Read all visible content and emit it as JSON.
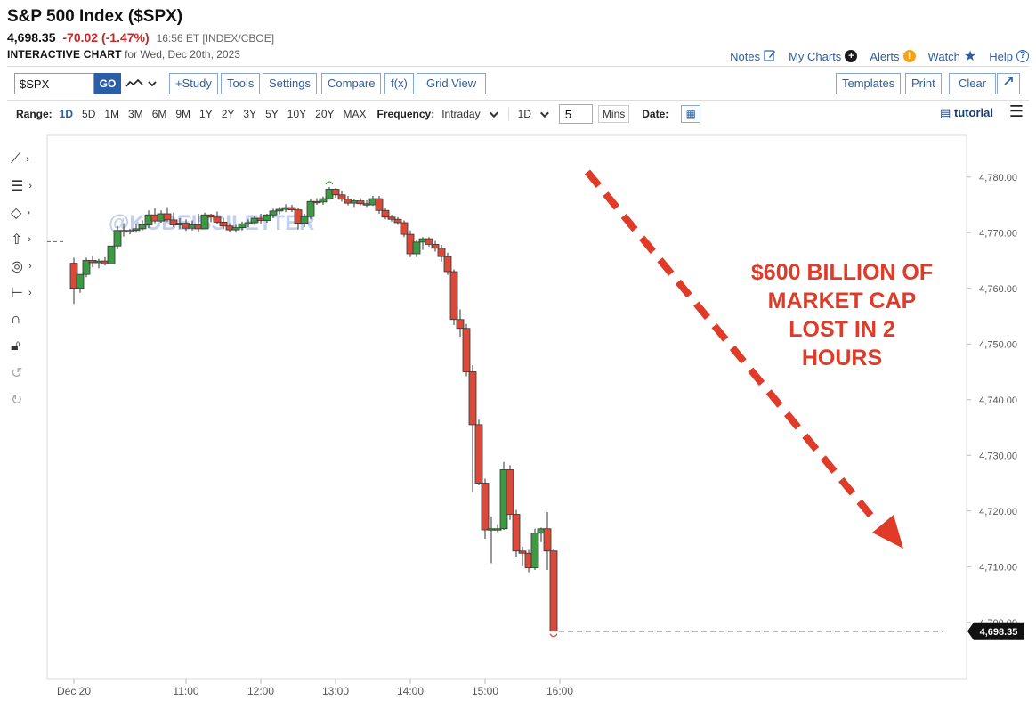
{
  "header": {
    "title": "S&P 500 Index ($SPX)",
    "last": "4,698.35",
    "change": "-70.02 (-1.47%)",
    "time": "16:56 ET [INDEX/CBOE]",
    "interactive_label": "INTERACTIVE CHART",
    "interactive_for": "for Wed, Dec 20th, 2023"
  },
  "toplinks": [
    {
      "label": "Notes",
      "icon": "pencil-icon"
    },
    {
      "label": "My Charts",
      "icon": "plus-circle-icon"
    },
    {
      "label": "Alerts",
      "icon": "alert-icon"
    },
    {
      "label": "Watch",
      "icon": "star-icon"
    },
    {
      "label": "Help",
      "icon": "help-icon"
    }
  ],
  "toolbar": {
    "symbol": "$SPX",
    "go": "GO",
    "chart_type_icon": "line-chart-icon",
    "buttons_left": [
      "+Study",
      "Tools",
      "Settings",
      "Compare",
      "f(x)",
      "Grid View"
    ],
    "buttons_right": [
      "Templates",
      "Print",
      "Clear"
    ],
    "expand_icon": "expand-icon"
  },
  "rangebar": {
    "range_label": "Range:",
    "ranges": [
      "1D",
      "5D",
      "1M",
      "3M",
      "6M",
      "9M",
      "1Y",
      "2Y",
      "3Y",
      "5Y",
      "10Y",
      "20Y",
      "MAX"
    ],
    "active_range": "1D",
    "frequency_label": "Frequency:",
    "frequency": "Intraday",
    "period": "1D",
    "interval": "5",
    "interval_unit": "Mins",
    "date_label": "Date:",
    "tutorial": "tutorial"
  },
  "drawing_tools": [
    "trendline-icon",
    "fibonacci-icon",
    "shapes-icon",
    "arrow-up-icon",
    "circle-icon",
    "measure-icon",
    "magnet-icon",
    "lock-icon",
    "undo-icon",
    "redo-icon"
  ],
  "colors": {
    "up": "#3c9a45",
    "down": "#d94a3a",
    "annotation": "#e03a28",
    "link": "#2a5fa8"
  },
  "chart_data": {
    "type": "candlestick",
    "x_tick_labels": [
      "Dec 20",
      "11:00",
      "12:00",
      "13:00",
      "14:00",
      "15:00",
      "16:00"
    ],
    "y_ticks": [
      4700,
      4710,
      4720,
      4730,
      4740,
      4750,
      4760,
      4770,
      4780
    ],
    "y_tick_labels": [
      "4,700.00",
      "4,710.00",
      "4,720.00",
      "4,730.00",
      "4,740.00",
      "4,750.00",
      "4,760.00",
      "4,770.00",
      "4,780.00"
    ],
    "ylim": [
      4694,
      4789
    ],
    "prev_close": 4768.37,
    "last_price_label": "4,698.35",
    "watermark": "@KOBEISSILETTER",
    "annotation": "$600 BILLION OF MARKET CAP LOST IN 2 HOURS",
    "candles": [
      {
        "time": "09:30",
        "o": 4764.5,
        "h": 4765.5,
        "l": 4757.2,
        "c": 4760.0
      },
      {
        "time": "09:35",
        "o": 4760.0,
        "h": 4762.5,
        "l": 4759.2,
        "c": 4762.5
      },
      {
        "time": "09:40",
        "o": 4762.5,
        "h": 4765.5,
        "l": 4762.0,
        "c": 4765.0
      },
      {
        "time": "09:45",
        "o": 4765.0,
        "h": 4765.8,
        "l": 4763.8,
        "c": 4764.6
      },
      {
        "time": "09:50",
        "o": 4764.6,
        "h": 4765.3,
        "l": 4763.6,
        "c": 4764.9
      },
      {
        "time": "09:55",
        "o": 4764.9,
        "h": 4765.6,
        "l": 4764.1,
        "c": 4764.4
      },
      {
        "time": "10:00",
        "o": 4764.4,
        "h": 4767.6,
        "l": 4764.4,
        "c": 4767.6
      },
      {
        "time": "10:05",
        "o": 4767.6,
        "h": 4771.2,
        "l": 4767.0,
        "c": 4770.4
      },
      {
        "time": "10:10",
        "o": 4770.4,
        "h": 4771.7,
        "l": 4769.3,
        "c": 4770.1
      },
      {
        "time": "10:15",
        "o": 4770.1,
        "h": 4770.7,
        "l": 4769.7,
        "c": 4770.4
      },
      {
        "time": "10:20",
        "o": 4770.4,
        "h": 4771.6,
        "l": 4770.0,
        "c": 4770.7
      },
      {
        "time": "10:25",
        "o": 4770.7,
        "h": 4772.2,
        "l": 4770.4,
        "c": 4771.4
      },
      {
        "time": "10:30",
        "o": 4771.4,
        "h": 4774.0,
        "l": 4770.8,
        "c": 4773.2
      },
      {
        "time": "10:35",
        "o": 4773.2,
        "h": 4774.4,
        "l": 4771.7,
        "c": 4772.1
      },
      {
        "time": "10:40",
        "o": 4772.1,
        "h": 4774.0,
        "l": 4771.8,
        "c": 4773.4
      },
      {
        "time": "10:45",
        "o": 4773.4,
        "h": 4774.6,
        "l": 4772.0,
        "c": 4772.3
      },
      {
        "time": "10:50",
        "o": 4772.3,
        "h": 4773.6,
        "l": 4771.0,
        "c": 4771.4
      },
      {
        "time": "10:55",
        "o": 4771.4,
        "h": 4772.6,
        "l": 4770.7,
        "c": 4771.7
      },
      {
        "time": "11:00",
        "o": 4771.7,
        "h": 4772.4,
        "l": 4770.3,
        "c": 4770.8
      },
      {
        "time": "11:05",
        "o": 4770.8,
        "h": 4772.2,
        "l": 4770.4,
        "c": 4771.4
      },
      {
        "time": "11:10",
        "o": 4771.4,
        "h": 4773.4,
        "l": 4770.0,
        "c": 4770.7
      },
      {
        "time": "11:15",
        "o": 4770.7,
        "h": 4773.6,
        "l": 4770.7,
        "c": 4773.2
      },
      {
        "time": "11:20",
        "o": 4773.2,
        "h": 4773.4,
        "l": 4771.9,
        "c": 4772.8
      },
      {
        "time": "11:25",
        "o": 4772.8,
        "h": 4773.8,
        "l": 4771.6,
        "c": 4771.9
      },
      {
        "time": "11:30",
        "o": 4771.9,
        "h": 4772.6,
        "l": 4770.6,
        "c": 4771.2
      },
      {
        "time": "11:35",
        "o": 4771.2,
        "h": 4771.7,
        "l": 4770.1,
        "c": 4770.5
      },
      {
        "time": "11:40",
        "o": 4770.5,
        "h": 4771.4,
        "l": 4770.0,
        "c": 4770.9
      },
      {
        "time": "11:45",
        "o": 4770.9,
        "h": 4772.0,
        "l": 4770.4,
        "c": 4771.6
      },
      {
        "time": "11:50",
        "o": 4771.6,
        "h": 4772.4,
        "l": 4771.0,
        "c": 4771.8
      },
      {
        "time": "11:55",
        "o": 4771.8,
        "h": 4773.0,
        "l": 4771.4,
        "c": 4772.6
      },
      {
        "time": "12:00",
        "o": 4772.6,
        "h": 4773.4,
        "l": 4771.6,
        "c": 4772.2
      },
      {
        "time": "12:05",
        "o": 4772.2,
        "h": 4773.4,
        "l": 4771.8,
        "c": 4773.2
      },
      {
        "time": "12:10",
        "o": 4773.2,
        "h": 4774.3,
        "l": 4772.6,
        "c": 4773.9
      },
      {
        "time": "12:15",
        "o": 4773.9,
        "h": 4774.6,
        "l": 4773.3,
        "c": 4774.2
      },
      {
        "time": "12:20",
        "o": 4774.2,
        "h": 4775.1,
        "l": 4773.7,
        "c": 4774.5
      },
      {
        "time": "12:25",
        "o": 4774.5,
        "h": 4775.0,
        "l": 4773.7,
        "c": 4774.1
      },
      {
        "time": "12:30",
        "o": 4774.1,
        "h": 4774.5,
        "l": 4770.6,
        "c": 4771.7
      },
      {
        "time": "12:35",
        "o": 4771.7,
        "h": 4773.4,
        "l": 4771.0,
        "c": 4772.9
      },
      {
        "time": "12:40",
        "o": 4772.9,
        "h": 4776.0,
        "l": 4772.4,
        "c": 4775.6
      },
      {
        "time": "12:45",
        "o": 4775.6,
        "h": 4776.2,
        "l": 4775.0,
        "c": 4775.5
      },
      {
        "time": "12:50",
        "o": 4775.5,
        "h": 4776.5,
        "l": 4775.0,
        "c": 4776.1
      },
      {
        "time": "12:55",
        "o": 4776.1,
        "h": 4778.2,
        "l": 4775.9,
        "c": 4777.8
      },
      {
        "time": "13:00",
        "o": 4777.8,
        "h": 4778.0,
        "l": 4776.3,
        "c": 4776.8
      },
      {
        "time": "13:05",
        "o": 4776.8,
        "h": 4777.5,
        "l": 4775.6,
        "c": 4776.0
      },
      {
        "time": "13:10",
        "o": 4776.0,
        "h": 4776.6,
        "l": 4774.9,
        "c": 4775.3
      },
      {
        "time": "13:15",
        "o": 4775.3,
        "h": 4776.0,
        "l": 4774.6,
        "c": 4775.7
      },
      {
        "time": "13:20",
        "o": 4775.7,
        "h": 4776.2,
        "l": 4774.9,
        "c": 4775.2
      },
      {
        "time": "13:25",
        "o": 4775.2,
        "h": 4775.8,
        "l": 4774.6,
        "c": 4775.0
      },
      {
        "time": "13:30",
        "o": 4775.0,
        "h": 4776.6,
        "l": 4774.8,
        "c": 4776.1
      },
      {
        "time": "13:35",
        "o": 4776.1,
        "h": 4776.6,
        "l": 4773.4,
        "c": 4774.0
      },
      {
        "time": "13:40",
        "o": 4774.0,
        "h": 4774.4,
        "l": 4772.4,
        "c": 4772.8
      },
      {
        "time": "13:45",
        "o": 4772.8,
        "h": 4773.2,
        "l": 4772.0,
        "c": 4772.4
      },
      {
        "time": "13:50",
        "o": 4772.4,
        "h": 4772.8,
        "l": 4771.4,
        "c": 4771.8
      },
      {
        "time": "13:55",
        "o": 4771.8,
        "h": 4772.2,
        "l": 4769.2,
        "c": 4769.7
      },
      {
        "time": "14:00",
        "o": 4769.7,
        "h": 4770.4,
        "l": 4765.6,
        "c": 4766.2
      },
      {
        "time": "14:05",
        "o": 4766.2,
        "h": 4768.6,
        "l": 4765.6,
        "c": 4768.3
      },
      {
        "time": "14:10",
        "o": 4768.3,
        "h": 4769.2,
        "l": 4766.9,
        "c": 4768.9
      },
      {
        "time": "14:15",
        "o": 4768.9,
        "h": 4769.2,
        "l": 4767.5,
        "c": 4767.9
      },
      {
        "time": "14:20",
        "o": 4767.9,
        "h": 4768.5,
        "l": 4766.6,
        "c": 4767.2
      },
      {
        "time": "14:25",
        "o": 4767.2,
        "h": 4767.8,
        "l": 4764.8,
        "c": 4765.7
      },
      {
        "time": "14:30",
        "o": 4765.7,
        "h": 4766.4,
        "l": 4762.4,
        "c": 4763.0
      },
      {
        "time": "14:35",
        "o": 4763.0,
        "h": 4763.4,
        "l": 4753.4,
        "c": 4754.4
      },
      {
        "time": "14:40",
        "o": 4754.4,
        "h": 4756.2,
        "l": 4751.3,
        "c": 4752.8
      },
      {
        "time": "14:45",
        "o": 4752.8,
        "h": 4753.6,
        "l": 4744.2,
        "c": 4745.0
      },
      {
        "time": "14:50",
        "o": 4745.0,
        "h": 4746.2,
        "l": 4723.4,
        "c": 4735.5
      },
      {
        "time": "14:55",
        "o": 4735.5,
        "h": 4736.4,
        "l": 4724.6,
        "c": 4725.0
      },
      {
        "time": "15:00",
        "o": 4725.0,
        "h": 4725.8,
        "l": 4715.0,
        "c": 4716.6
      },
      {
        "time": "15:05",
        "o": 4716.6,
        "h": 4719.0,
        "l": 4710.6,
        "c": 4716.8
      },
      {
        "time": "15:10",
        "o": 4716.8,
        "h": 4717.6,
        "l": 4716.2,
        "c": 4716.8
      },
      {
        "time": "15:15",
        "o": 4716.8,
        "h": 4728.8,
        "l": 4716.6,
        "c": 4727.4
      },
      {
        "time": "15:20",
        "o": 4727.4,
        "h": 4728.2,
        "l": 4718.4,
        "c": 4719.4
      },
      {
        "time": "15:25",
        "o": 4719.4,
        "h": 4720.2,
        "l": 4711.8,
        "c": 4712.8
      },
      {
        "time": "15:30",
        "o": 4712.8,
        "h": 4713.6,
        "l": 4710.2,
        "c": 4712.4
      },
      {
        "time": "15:35",
        "o": 4712.4,
        "h": 4713.0,
        "l": 4709.0,
        "c": 4709.8
      },
      {
        "time": "15:40",
        "o": 4709.8,
        "h": 4716.8,
        "l": 4709.4,
        "c": 4716.0
      },
      {
        "time": "15:45",
        "o": 4716.0,
        "h": 4717.0,
        "l": 4714.4,
        "c": 4716.8
      },
      {
        "time": "15:50",
        "o": 4716.8,
        "h": 4719.8,
        "l": 4709.4,
        "c": 4712.8
      },
      {
        "time": "15:55",
        "o": 4712.8,
        "h": 4713.2,
        "l": 4698.4,
        "c": 4698.4
      }
    ]
  }
}
